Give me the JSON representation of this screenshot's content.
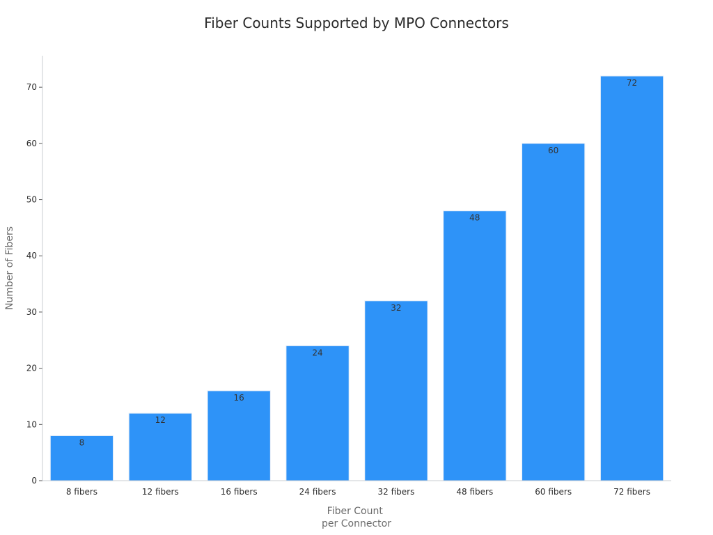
{
  "chart_data": {
    "type": "bar",
    "title": "Fiber Counts Supported by MPO Connectors",
    "xlabel_lines": [
      "Fiber Count",
      "per Connector"
    ],
    "ylabel": "Number of Fibers",
    "categories": [
      "8 fibers",
      "12 fibers",
      "16 fibers",
      "24 fibers",
      "32 fibers",
      "48 fibers",
      "60 fibers",
      "72 fibers"
    ],
    "values": [
      8,
      12,
      16,
      24,
      32,
      48,
      60,
      72
    ],
    "ylim": [
      0,
      75.6
    ],
    "yticks": [
      0,
      10,
      20,
      30,
      40,
      50,
      60,
      70
    ],
    "grid": false,
    "legend": "none",
    "bar_color": "#2e93f8",
    "bar_edge_color": "#e6eef8",
    "axis_color": "#c8ccd2"
  }
}
